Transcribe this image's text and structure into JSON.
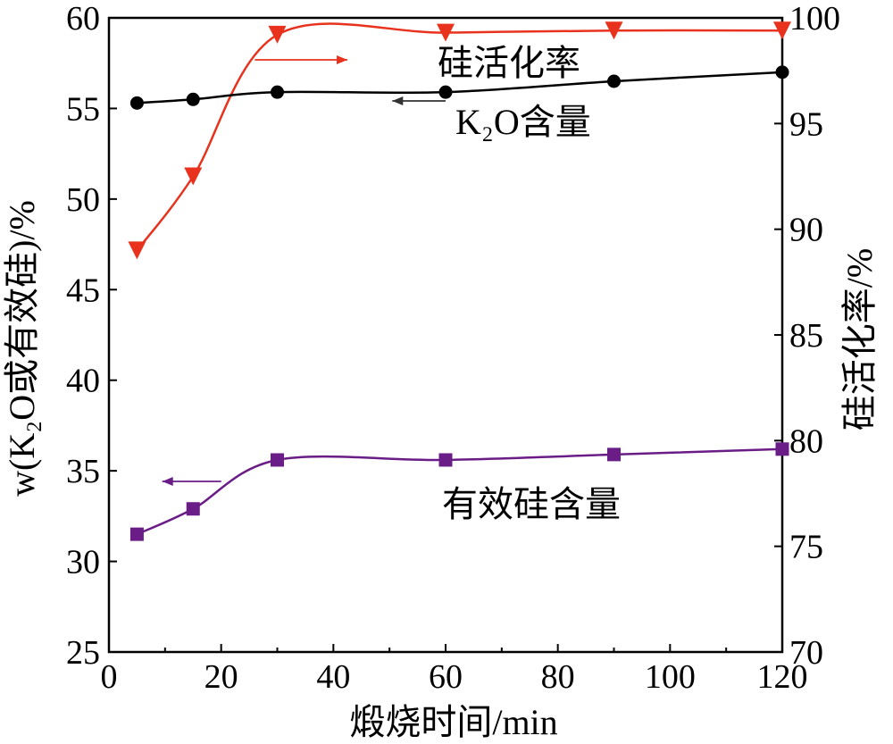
{
  "chart_data": {
    "type": "line",
    "xlabel": "煅烧时间/min",
    "ylabel_left": "w(K₂O或有效硅)/%",
    "ylabel_right": "硅活化率/%",
    "xlim": [
      0,
      120
    ],
    "ylim_left": [
      25,
      60
    ],
    "ylim_right": [
      70,
      100
    ],
    "x_ticks": [
      "0",
      "20",
      "40",
      "60",
      "80",
      "100",
      "120"
    ],
    "y_left_ticks": [
      "25",
      "30",
      "35",
      "40",
      "45",
      "50",
      "55",
      "60"
    ],
    "y_right_ticks": [
      "70",
      "75",
      "80",
      "85",
      "90",
      "95",
      "100"
    ],
    "grid": false,
    "series": [
      {
        "name": "硅活化率",
        "axis": "right",
        "color": "#e8321e",
        "marker": "triangle-down",
        "x": [
          5,
          15,
          30,
          60,
          90,
          120
        ],
        "y": [
          89.0,
          92.5,
          99.2,
          99.3,
          99.4,
          99.4
        ]
      },
      {
        "name": "K₂O含量",
        "axis": "left",
        "color": "#000000",
        "marker": "circle",
        "x": [
          5,
          15,
          30,
          60,
          90,
          120
        ],
        "y": [
          55.3,
          55.5,
          55.9,
          55.9,
          56.5,
          57.0
        ]
      },
      {
        "name": "有效硅含量",
        "axis": "left",
        "color": "#6a1d86",
        "marker": "square",
        "x": [
          5,
          15,
          30,
          60,
          90,
          120
        ],
        "y": [
          31.5,
          32.9,
          35.6,
          35.6,
          35.9,
          36.2
        ]
      }
    ],
    "annotations": [
      {
        "text": "硅活化率",
        "series": 0
      },
      {
        "text": "K₂O含量",
        "series": 1
      },
      {
        "text": "有效硅含量",
        "series": 2
      }
    ]
  }
}
